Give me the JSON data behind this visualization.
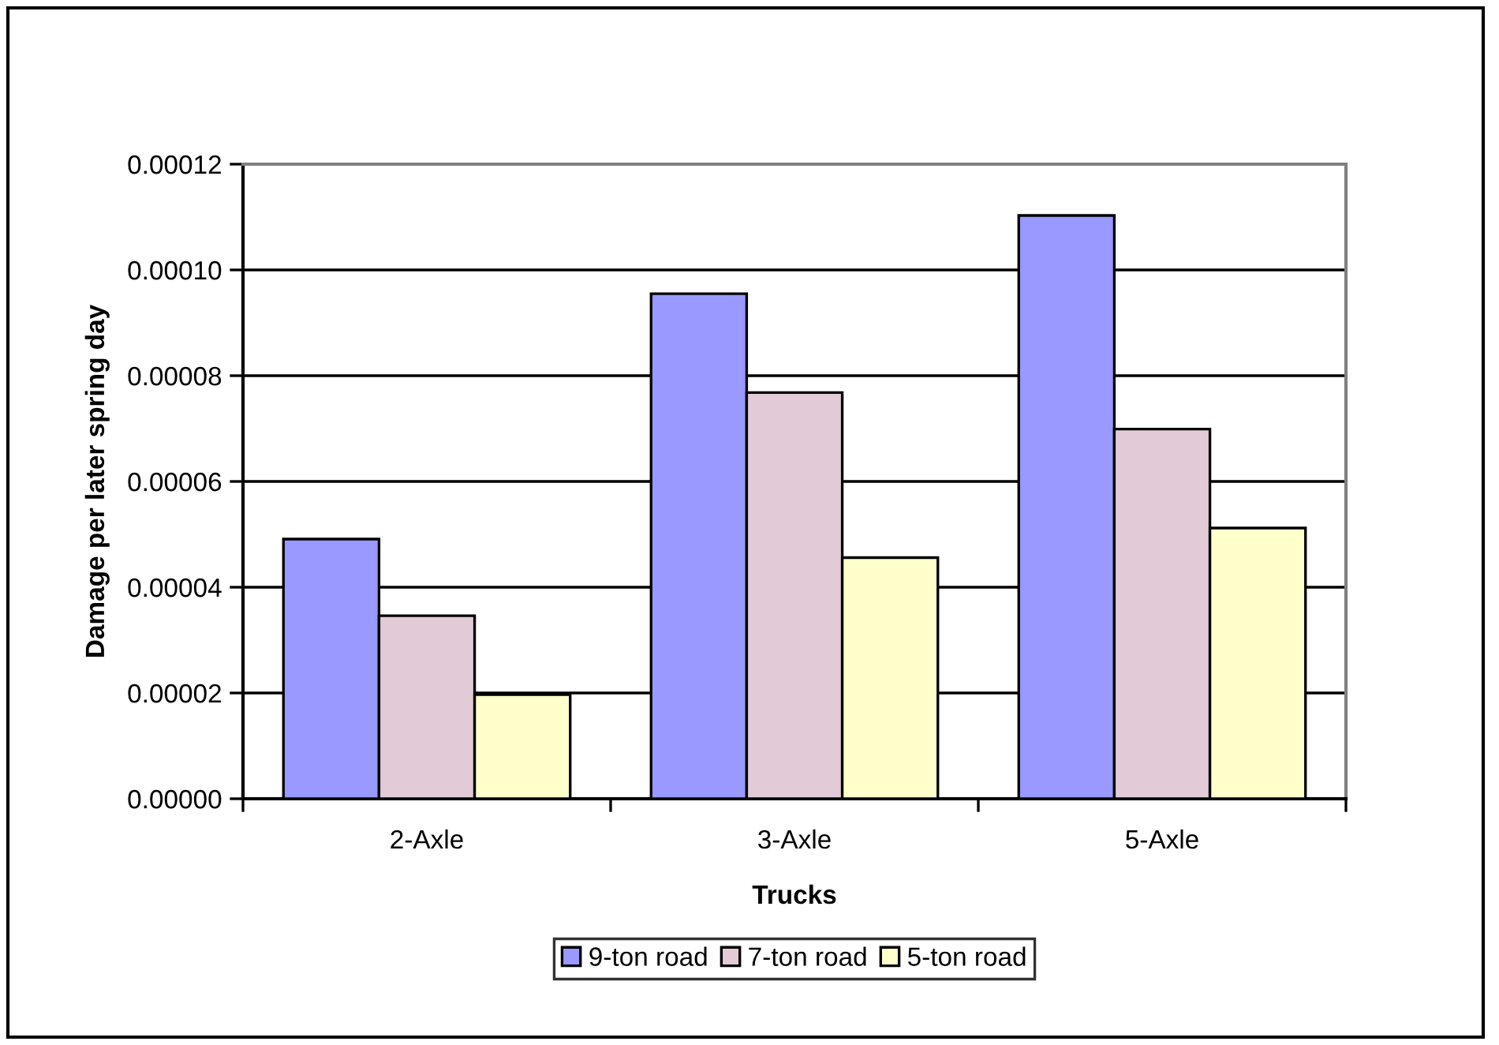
{
  "chart_data": {
    "type": "bar",
    "xlabel": "Trucks",
    "ylabel": "Damage per later spring day",
    "categories": [
      "2-Axle",
      "3-Axle",
      "5-Axle"
    ],
    "series": [
      {
        "name": "9-ton road",
        "color": "#9999ff",
        "values": [
          4.91e-05,
          9.55e-05,
          0.0001103
        ]
      },
      {
        "name": "7-ton road",
        "color": "#e3cad7",
        "values": [
          3.46e-05,
          7.68e-05,
          6.99e-05
        ]
      },
      {
        "name": "5-ton road",
        "color": "#ffffcc",
        "values": [
          1.97e-05,
          4.56e-05,
          5.12e-05
        ]
      }
    ],
    "ylim": [
      0,
      0.00012
    ],
    "yticks": [
      {
        "value": 0,
        "label": "0.00000"
      },
      {
        "value": 2e-05,
        "label": "0.00002"
      },
      {
        "value": 4e-05,
        "label": "0.00004"
      },
      {
        "value": 6e-05,
        "label": "0.00006"
      },
      {
        "value": 8e-05,
        "label": "0.00008"
      },
      {
        "value": 0.0001,
        "label": "0.00010"
      },
      {
        "value": 0.00012,
        "label": "0.00012"
      }
    ],
    "grid": "y",
    "legend": "bottom"
  }
}
